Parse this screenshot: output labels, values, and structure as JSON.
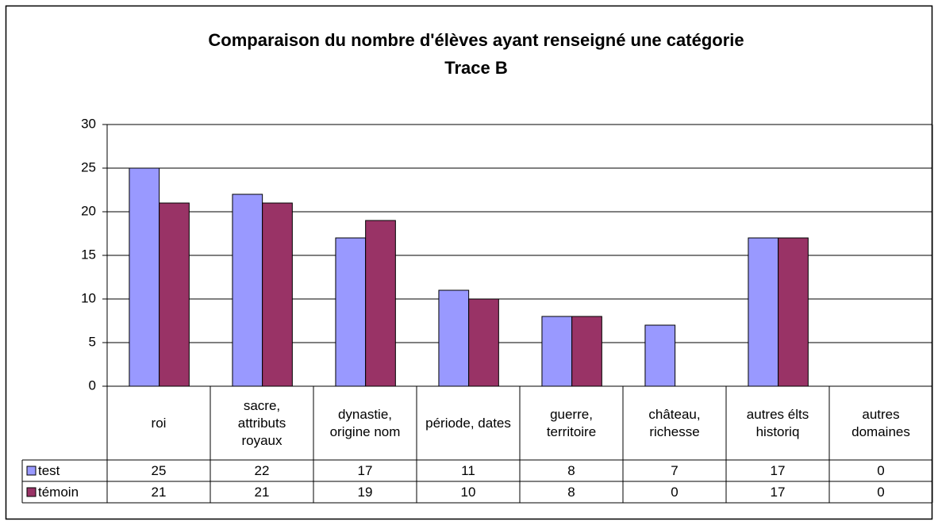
{
  "chart_data": {
    "type": "bar",
    "title": "Comparaison du nombre d'élèves ayant renseigné une catégorie",
    "subtitle": "Trace B",
    "categories": [
      "roi",
      "sacre, attributs royaux",
      "dynastie, origine nom",
      "période, dates",
      "guerre, territoire",
      "château, richesse",
      "autres élts historiq",
      "autres domaines"
    ],
    "series": [
      {
        "name": "test",
        "color": "#9999ff",
        "values": [
          25,
          22,
          17,
          11,
          8,
          7,
          17,
          0
        ]
      },
      {
        "name": "témoin",
        "color": "#993366",
        "values": [
          21,
          21,
          19,
          10,
          8,
          0,
          17,
          0
        ]
      }
    ],
    "ylim": [
      0,
      30
    ],
    "yticks": [
      0,
      5,
      10,
      15,
      20,
      25,
      30
    ],
    "grid": true,
    "data_table": true
  }
}
